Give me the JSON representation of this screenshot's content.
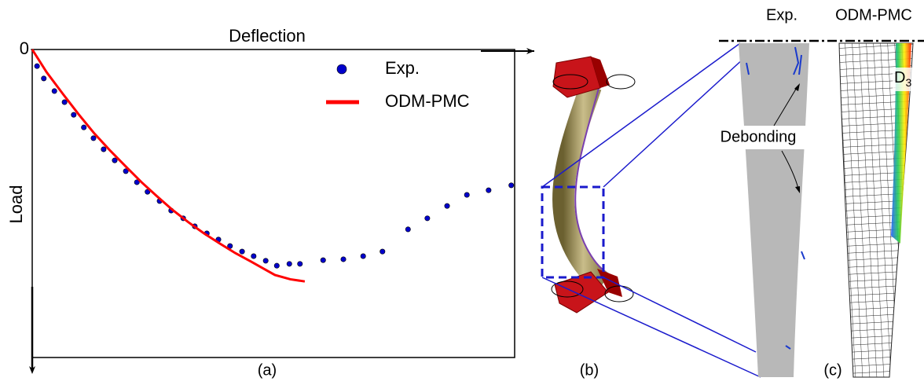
{
  "chart_data": {
    "type": "line",
    "x_label": "Deflection",
    "y_label": "Load",
    "xlim": [
      0,
      100
    ],
    "ylim": [
      0,
      100
    ],
    "y_direction": "down",
    "yticks": [
      0
    ],
    "grid": false,
    "legend": "top",
    "series": [
      {
        "name": "Exp.",
        "color": "#0000cc",
        "mode": "markers",
        "x": [
          1.0,
          2.4,
          4.6,
          6.7,
          8.6,
          10.7,
          12.7,
          14.8,
          17.1,
          19.4,
          21.7,
          23.9,
          26.4,
          28.8,
          31.3,
          33.7,
          36.2,
          38.6,
          41.0,
          43.5,
          45.9,
          48.4,
          50.7,
          53.3,
          55.5,
          60.3,
          64.5,
          68.6,
          72.6,
          77.9,
          81.9,
          86.0,
          90.1,
          94.6,
          99.3
        ],
        "values": [
          5.4,
          9.4,
          13.5,
          17.1,
          21.2,
          25.3,
          28.8,
          32.4,
          36.0,
          39.5,
          43.1,
          46.2,
          49.2,
          52.3,
          54.8,
          57.4,
          59.7,
          61.7,
          63.8,
          65.6,
          67.1,
          68.6,
          70.2,
          69.6,
          69.6,
          68.4,
          68.1,
          67.1,
          65.6,
          58.4,
          54.8,
          50.8,
          47.2,
          45.7,
          44.1
        ]
      },
      {
        "name": "ODM-PMC",
        "color": "#ff0000",
        "mode": "line",
        "x": [
          0,
          3.0,
          6.4,
          9.6,
          12.9,
          16.2,
          19.4,
          22.6,
          25.9,
          29.1,
          32.4,
          35.6,
          38.9,
          42.1,
          45.4,
          48.0,
          50.3,
          53.5,
          56.5
        ],
        "values": [
          0,
          7.4,
          14.5,
          21.0,
          27.3,
          32.9,
          38.0,
          43.0,
          47.7,
          52.1,
          56.1,
          59.7,
          63.0,
          66.1,
          68.9,
          71.2,
          73.2,
          74.6,
          75.3
        ]
      }
    ]
  },
  "panels": [
    "(a)",
    "(b)",
    "(c)"
  ],
  "panel_c": {
    "headers": [
      "Exp.",
      "ODM-PMC"
    ],
    "annotation": "Debonding",
    "damage_label": {
      "base": "D",
      "subscript": "3"
    }
  }
}
